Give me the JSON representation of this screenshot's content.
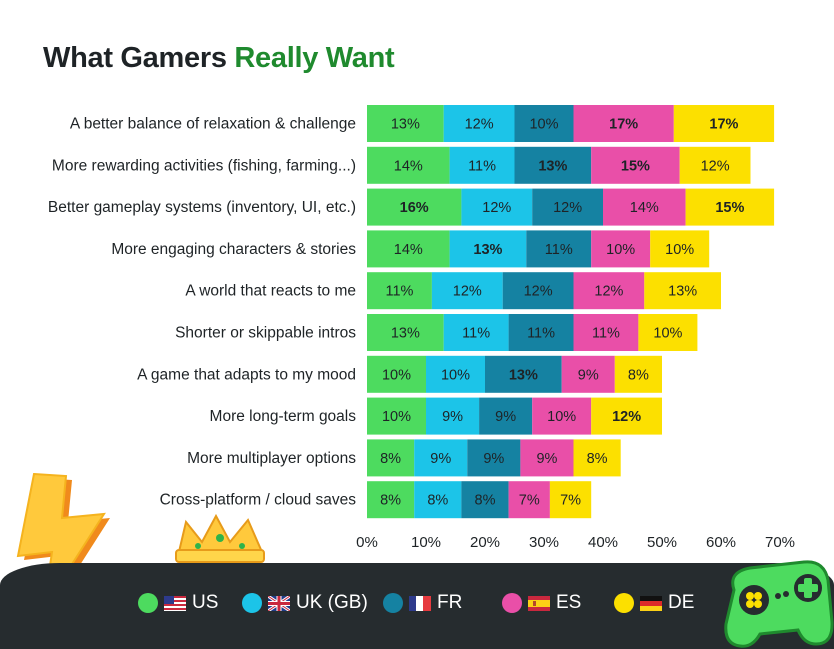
{
  "title": {
    "prefix": "What Gamers ",
    "highlight": "Really Want"
  },
  "colors": {
    "US": "#4ddb5f",
    "UK (GB)": "#1cc4e8",
    "FR": "#1582a2",
    "ES": "#e94fa8",
    "DE": "#fce000",
    "title_highlight": "#1f8a2e",
    "footer_bg": "#262c2f"
  },
  "legend": [
    {
      "label": "US",
      "flag": "us-flag-icon"
    },
    {
      "label": "UK (GB)",
      "flag": "uk-flag-icon"
    },
    {
      "label": "FR",
      "flag": "fr-flag-icon"
    },
    {
      "label": "ES",
      "flag": "es-flag-icon"
    },
    {
      "label": "DE",
      "flag": "de-flag-icon"
    }
  ],
  "chart_data": {
    "type": "bar",
    "orientation": "horizontal",
    "stacked": true,
    "title": "What Gamers Really Want",
    "xlabel": "",
    "ylabel": "",
    "xlim": [
      0,
      70
    ],
    "x_ticks": [
      "0%",
      "10%",
      "20%",
      "30%",
      "40%",
      "50%",
      "60%",
      "70%"
    ],
    "grid": false,
    "legend_position": "bottom",
    "categories": [
      "A better balance of relaxation & challenge",
      "More rewarding activities (fishing, farming...)",
      "Better gameplay systems (inventory, UI, etc.)",
      "More engaging characters & stories",
      "A world that reacts to me",
      "Shorter or skippable intros",
      "A game that adapts to my mood",
      "More long-term goals",
      "More multiplayer options",
      "Cross-platform / cloud saves"
    ],
    "series": [
      {
        "name": "US",
        "values": [
          13,
          14,
          16,
          14,
          11,
          13,
          10,
          10,
          8,
          8
        ],
        "labels": [
          "13%",
          "14%",
          "16%",
          "14%",
          "11%",
          "13%",
          "10%",
          "10%",
          "8%",
          "8%"
        ],
        "bold": [
          false,
          false,
          true,
          false,
          false,
          false,
          false,
          false,
          false,
          false
        ]
      },
      {
        "name": "UK (GB)",
        "values": [
          12,
          11,
          12,
          13,
          12,
          11,
          10,
          9,
          9,
          8
        ],
        "labels": [
          "12%",
          "11%",
          "12%",
          "13%",
          "12%",
          "11%",
          "10%",
          "9%",
          "9%",
          "8%"
        ],
        "bold": [
          false,
          false,
          false,
          true,
          false,
          false,
          false,
          false,
          false,
          false
        ]
      },
      {
        "name": "FR",
        "values": [
          10,
          13,
          12,
          11,
          12,
          11,
          13,
          9,
          9,
          8
        ],
        "labels": [
          "10%",
          "13%",
          "12%",
          "11%",
          "12%",
          "11%",
          "13%",
          "9%",
          "9%",
          "8%"
        ],
        "bold": [
          false,
          true,
          false,
          false,
          false,
          false,
          true,
          false,
          false,
          false
        ]
      },
      {
        "name": "ES",
        "values": [
          17,
          15,
          14,
          10,
          12,
          11,
          9,
          10,
          9,
          7
        ],
        "labels": [
          "17%",
          "15%",
          "14%",
          "10%",
          "12%",
          "11%",
          "9%",
          "10%",
          "9%",
          "7%"
        ],
        "bold": [
          true,
          true,
          false,
          false,
          false,
          false,
          false,
          false,
          false,
          false
        ]
      },
      {
        "name": "DE",
        "values": [
          17,
          12,
          15,
          10,
          13,
          10,
          8,
          12,
          8,
          7
        ],
        "labels": [
          "17%",
          "12%",
          "15%",
          "10%",
          "13%",
          "10%",
          "8%",
          "12%",
          "8%",
          "7%"
        ],
        "bold": [
          true,
          false,
          true,
          false,
          false,
          false,
          false,
          true,
          false,
          false
        ]
      }
    ]
  }
}
